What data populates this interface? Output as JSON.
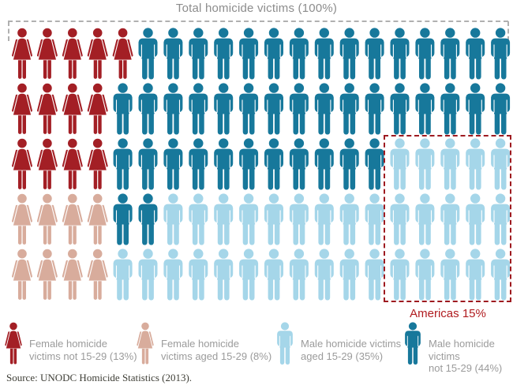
{
  "title": "Total homicide victims (100%)",
  "source": "Source: UNODC Homicide Statistics (2013).",
  "colors": {
    "female_not_1529": "#a31f25",
    "female_1529": "#d8ac9c",
    "male_1529": "#a5d6e9",
    "male_not_1529": "#17789b",
    "americas_red": "#9e1a20",
    "americas_red_text": "#b01b1f",
    "title_gray": "#8c8c8c",
    "legend_gray": "#9b9b9b",
    "bracket_gray": "#b0b0b0",
    "source_gray": "#3f3f37"
  },
  "chart_data": {
    "type": "pictogram",
    "title": "Total homicide victims (100%)",
    "total_units": 100,
    "unit_value_percent": 1,
    "grid": {
      "rows": 5,
      "columns": 20
    },
    "categories": [
      {
        "id": "female_not_1529",
        "icon": "female",
        "color": "#a31f25",
        "label": "Female homicide victims not 15-29 (13%)",
        "value": 13
      },
      {
        "id": "female_1529",
        "icon": "female",
        "color": "#d8ac9c",
        "label": "Female homicide victims aged 15-29 (8%)",
        "value": 8
      },
      {
        "id": "male_1529",
        "icon": "male",
        "color": "#a5d6e9",
        "label": "Male homicide victims aged 15-29 (35%)",
        "value": 35
      },
      {
        "id": "male_not_1529",
        "icon": "male",
        "color": "#17789b",
        "label": "Male homicide victims not 15-29 (44%)",
        "value": 44
      }
    ],
    "rows": [
      [
        {
          "cat": "female_not_1529",
          "n": 5
        },
        {
          "cat": "male_not_1529",
          "n": 15
        }
      ],
      [
        {
          "cat": "female_not_1529",
          "n": 4
        },
        {
          "cat": "male_not_1529",
          "n": 16
        }
      ],
      [
        {
          "cat": "female_not_1529",
          "n": 4
        },
        {
          "cat": "male_not_1529",
          "n": 11
        },
        {
          "cat": "male_1529",
          "n": 5
        }
      ],
      [
        {
          "cat": "female_1529",
          "n": 4
        },
        {
          "cat": "male_not_1529",
          "n": 2
        },
        {
          "cat": "male_1529",
          "n": 14
        }
      ],
      [
        {
          "cat": "female_1529",
          "n": 4
        },
        {
          "cat": "male_1529",
          "n": 16
        }
      ]
    ],
    "annotation": {
      "label": "Americas 15%",
      "value": 15,
      "region": {
        "columns": [
          16,
          20
        ],
        "rows": [
          3,
          5
        ]
      }
    }
  },
  "legend": {
    "items": [
      {
        "icon": "female-icon",
        "line1": "Female homicide",
        "line2": "victims not 15-29 (13%)"
      },
      {
        "icon": "female-icon",
        "line1": "Female homicide",
        "line2": "victims aged 15-29 (8%)"
      },
      {
        "icon": "male-icon",
        "line1": "Male homicide victims",
        "line2": "aged 15-29 (35%)"
      },
      {
        "icon": "male-icon",
        "line1": "Male homicide victims",
        "line2": "not 15-29 (44%)"
      }
    ]
  }
}
